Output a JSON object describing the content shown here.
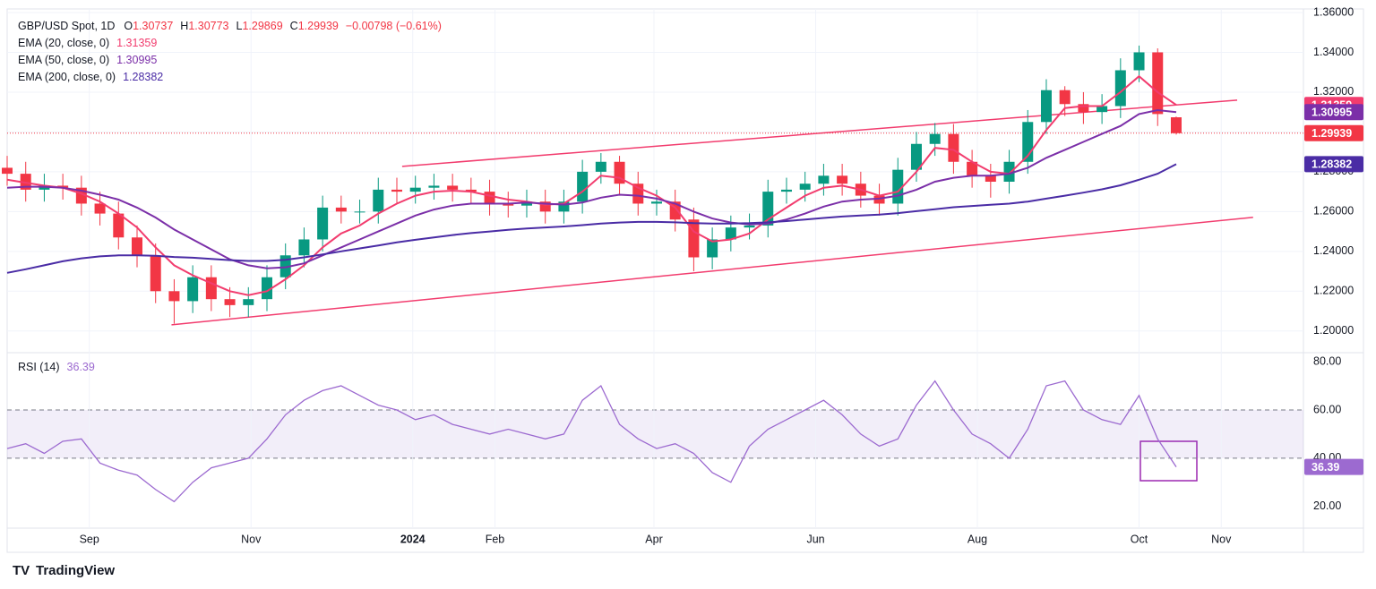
{
  "chart_data": [
    {
      "type": "candlestick",
      "title": "GBP/USD Spot, 1D",
      "ohlc_labels": [
        "O",
        "H",
        "L",
        "C"
      ],
      "change_label": "−0.00798 (−0.61%)",
      "up_color": "#089981",
      "down_color": "#f23645",
      "grid": true,
      "brand": "TradingView",
      "x": [
        0,
        7,
        14,
        21,
        28,
        35,
        42,
        49,
        56,
        63,
        70,
        77,
        84,
        91,
        98,
        105,
        112,
        119,
        126,
        133,
        140,
        147,
        154,
        161,
        168,
        175,
        182,
        189,
        196,
        203,
        210,
        217,
        224,
        231,
        238,
        245,
        252,
        259,
        266,
        273,
        280,
        287,
        294,
        301,
        308,
        315,
        322,
        329,
        336,
        343,
        350,
        357,
        364,
        371,
        378,
        385,
        392,
        399,
        406,
        413,
        420,
        427,
        434,
        441
      ],
      "open": [
        1.282,
        1.279,
        1.271,
        1.273,
        1.272,
        1.264,
        1.259,
        1.247,
        1.238,
        1.22,
        1.215,
        1.227,
        1.216,
        1.213,
        1.216,
        1.227,
        1.238,
        1.246,
        1.262,
        1.26,
        1.26,
        1.271,
        1.27,
        1.272,
        1.273,
        1.271,
        1.27,
        1.264,
        1.263,
        1.265,
        1.26,
        1.265,
        1.28,
        1.285,
        1.274,
        1.264,
        1.265,
        1.256,
        1.237,
        1.246,
        1.252,
        1.253,
        1.27,
        1.271,
        1.274,
        1.278,
        1.274,
        1.268,
        1.264,
        1.281,
        1.294,
        1.299,
        1.285,
        1.278,
        1.275,
        1.285,
        1.305,
        1.321,
        1.314,
        1.31,
        1.313,
        1.331,
        1.34,
        1.30737
      ],
      "high": [
        1.288,
        1.285,
        1.279,
        1.279,
        1.278,
        1.27,
        1.265,
        1.253,
        1.244,
        1.226,
        1.233,
        1.233,
        1.222,
        1.222,
        1.233,
        1.244,
        1.252,
        1.268,
        1.268,
        1.266,
        1.277,
        1.277,
        1.278,
        1.279,
        1.279,
        1.277,
        1.276,
        1.27,
        1.271,
        1.271,
        1.271,
        1.286,
        1.2894,
        1.288,
        1.28,
        1.271,
        1.271,
        1.262,
        1.252,
        1.258,
        1.259,
        1.276,
        1.277,
        1.28,
        1.284,
        1.284,
        1.28,
        1.274,
        1.287,
        1.3,
        1.3045,
        1.304,
        1.291,
        1.284,
        1.291,
        1.311,
        1.3265,
        1.323,
        1.32,
        1.319,
        1.337,
        1.3434,
        1.342,
        1.30773
      ],
      "low": [
        1.273,
        1.265,
        1.265,
        1.266,
        1.258,
        1.253,
        1.241,
        1.232,
        1.214,
        1.2037,
        1.209,
        1.21,
        1.207,
        1.207,
        1.21,
        1.221,
        1.232,
        1.24,
        1.254,
        1.254,
        1.254,
        1.264,
        1.264,
        1.266,
        1.265,
        1.264,
        1.258,
        1.257,
        1.257,
        1.254,
        1.254,
        1.259,
        1.274,
        1.268,
        1.258,
        1.258,
        1.25,
        1.23,
        1.231,
        1.24,
        1.246,
        1.247,
        1.264,
        1.265,
        1.268,
        1.268,
        1.262,
        1.258,
        1.258,
        1.275,
        1.288,
        1.279,
        1.272,
        1.267,
        1.269,
        1.279,
        1.299,
        1.308,
        1.304,
        1.304,
        1.307,
        1.325,
        1.303,
        1.29869
      ],
      "close": [
        1.279,
        1.271,
        1.273,
        1.272,
        1.264,
        1.259,
        1.247,
        1.238,
        1.22,
        1.215,
        1.227,
        1.216,
        1.213,
        1.216,
        1.227,
        1.238,
        1.246,
        1.262,
        1.26,
        1.26,
        1.271,
        1.27,
        1.272,
        1.273,
        1.271,
        1.27,
        1.264,
        1.263,
        1.265,
        1.26,
        1.265,
        1.28,
        1.285,
        1.274,
        1.264,
        1.265,
        1.256,
        1.237,
        1.246,
        1.252,
        1.253,
        1.27,
        1.271,
        1.274,
        1.278,
        1.274,
        1.268,
        1.264,
        1.281,
        1.294,
        1.299,
        1.285,
        1.278,
        1.275,
        1.285,
        1.305,
        1.321,
        1.314,
        1.31,
        1.313,
        1.331,
        1.34,
        1.309,
        1.29939
      ],
      "series": [
        {
          "name": "EMA (20, close, 0)",
          "color": "#f23c6e",
          "values": [
            1.276,
            1.2745,
            1.273,
            1.272,
            1.269,
            1.265,
            1.259,
            1.252,
            1.242,
            1.233,
            1.228,
            1.224,
            1.22,
            1.218,
            1.22,
            1.226,
            1.233,
            1.242,
            1.249,
            1.253,
            1.259,
            1.264,
            1.268,
            1.27,
            1.2705,
            1.27,
            1.268,
            1.266,
            1.265,
            1.2635,
            1.264,
            1.27,
            1.278,
            1.277,
            1.272,
            1.268,
            1.262,
            1.25,
            1.245,
            1.246,
            1.249,
            1.256,
            1.262,
            1.268,
            1.272,
            1.273,
            1.271,
            1.268,
            1.27,
            1.28,
            1.292,
            1.291,
            1.285,
            1.28,
            1.279,
            1.288,
            1.301,
            1.312,
            1.313,
            1.313,
            1.32,
            1.328,
            1.32,
            1.31359
          ]
        },
        {
          "name": "EMA (50, close, 0)",
          "color": "#7b2fa8",
          "values": [
            1.272,
            1.2725,
            1.2725,
            1.272,
            1.2705,
            1.2685,
            1.266,
            1.262,
            1.257,
            1.251,
            1.246,
            1.241,
            1.236,
            1.233,
            1.2315,
            1.232,
            1.234,
            1.238,
            1.242,
            1.246,
            1.25,
            1.254,
            1.258,
            1.261,
            1.263,
            1.264,
            1.264,
            1.264,
            1.2645,
            1.264,
            1.2635,
            1.2645,
            1.267,
            1.2685,
            1.268,
            1.2665,
            1.264,
            1.26,
            1.2565,
            1.2545,
            1.2535,
            1.254,
            1.256,
            1.259,
            1.2625,
            1.265,
            1.266,
            1.2665,
            1.268,
            1.271,
            1.275,
            1.277,
            1.278,
            1.278,
            1.279,
            1.282,
            1.287,
            1.291,
            1.295,
            1.299,
            1.303,
            1.309,
            1.311,
            1.30995
          ]
        },
        {
          "name": "EMA (200, close, 0)",
          "color": "#4a2ca5",
          "values": [
            1.2292,
            1.231,
            1.233,
            1.235,
            1.2365,
            1.2375,
            1.238,
            1.238,
            1.2378,
            1.2372,
            1.2368,
            1.2362,
            1.2356,
            1.2352,
            1.2352,
            1.2358,
            1.237,
            1.2385,
            1.24,
            1.2415,
            1.243,
            1.2445,
            1.2458,
            1.247,
            1.2482,
            1.2492,
            1.25,
            1.2508,
            1.2515,
            1.252,
            1.2525,
            1.2532,
            1.254,
            1.2545,
            1.2548,
            1.2548,
            1.2546,
            1.2542,
            1.254,
            1.254,
            1.2542,
            1.2546,
            1.2552,
            1.256,
            1.2568,
            1.2575,
            1.258,
            1.2585,
            1.2592,
            1.2602,
            1.2612,
            1.2622,
            1.2628,
            1.2634,
            1.264,
            1.265,
            1.2665,
            1.268,
            1.2695,
            1.2712,
            1.2732,
            1.276,
            1.279,
            1.28382
          ]
        }
      ],
      "trendlines": [
        {
          "color": "#f23c6e",
          "x": [
            149,
            464
          ],
          "y": [
            1.2827,
            1.316
          ]
        },
        {
          "color": "#f23c6e",
          "x": [
            62,
            470
          ],
          "y": [
            1.2031,
            1.2571
          ]
        }
      ],
      "xlim": [
        0,
        489
      ],
      "ylim": [
        1.19,
        1.3618
      ],
      "yticks": [
        {
          "value": 1.2,
          "label": "1.20000"
        },
        {
          "value": 1.22,
          "label": "1.22000"
        },
        {
          "value": 1.24,
          "label": "1.24000"
        },
        {
          "value": 1.26,
          "label": "1.26000"
        },
        {
          "value": 1.28,
          "label": "1.28000"
        },
        {
          "value": 1.3,
          "label": "1.30000"
        },
        {
          "value": 1.32,
          "label": "1.32000"
        },
        {
          "value": 1.34,
          "label": "1.34000"
        },
        {
          "value": 1.36,
          "label": "1.36000"
        }
      ],
      "xticks": [
        {
          "value": 31,
          "label": "Sep"
        },
        {
          "value": 92,
          "label": "Nov"
        },
        {
          "value": 153,
          "label": "2024"
        },
        {
          "value": 184,
          "label": "Feb"
        },
        {
          "value": 244,
          "label": "Apr"
        },
        {
          "value": 305,
          "label": "Jun"
        },
        {
          "value": 366,
          "label": "Aug"
        },
        {
          "value": 427,
          "label": "Oct"
        },
        {
          "value": 458,
          "label": "Nov"
        }
      ]
    },
    {
      "type": "line",
      "title": "RSI (14)",
      "band_color": "#7e57c2",
      "x": [
        0,
        7,
        14,
        21,
        28,
        35,
        42,
        49,
        56,
        63,
        70,
        77,
        84,
        91,
        98,
        105,
        112,
        119,
        126,
        133,
        140,
        147,
        154,
        161,
        168,
        175,
        182,
        189,
        196,
        203,
        210,
        217,
        224,
        231,
        238,
        245,
        252,
        259,
        266,
        273,
        280,
        287,
        294,
        301,
        308,
        315,
        322,
        329,
        336,
        343,
        350,
        357,
        364,
        371,
        378,
        385,
        392,
        399,
        406,
        413,
        420,
        427,
        434,
        441
      ],
      "series": [
        {
          "name": "RSI (14)",
          "color": "#9c6ad0",
          "values": [
            44,
            46,
            42,
            47,
            48,
            38,
            35,
            33,
            27,
            22,
            30,
            36,
            38,
            40,
            48,
            58,
            64,
            68,
            70,
            66,
            62,
            60,
            56,
            58,
            54,
            52,
            50,
            52,
            50,
            48,
            50,
            64,
            70,
            54,
            48,
            44,
            46,
            42,
            34,
            30,
            45,
            52,
            56,
            60,
            64,
            58,
            50,
            45,
            48,
            62,
            72,
            60,
            50,
            46,
            40,
            52,
            70,
            72,
            60,
            56,
            54,
            66,
            48,
            36.39
          ]
        }
      ],
      "levels": [
        60,
        40
      ],
      "ylim": [
        11,
        83
      ],
      "yticks": [
        {
          "value": 80,
          "label": "80.00"
        },
        {
          "value": 60,
          "label": "60.00"
        },
        {
          "value": 40,
          "label": "40.00"
        },
        {
          "value": 20,
          "label": "20.00"
        }
      ]
    }
  ]
}
